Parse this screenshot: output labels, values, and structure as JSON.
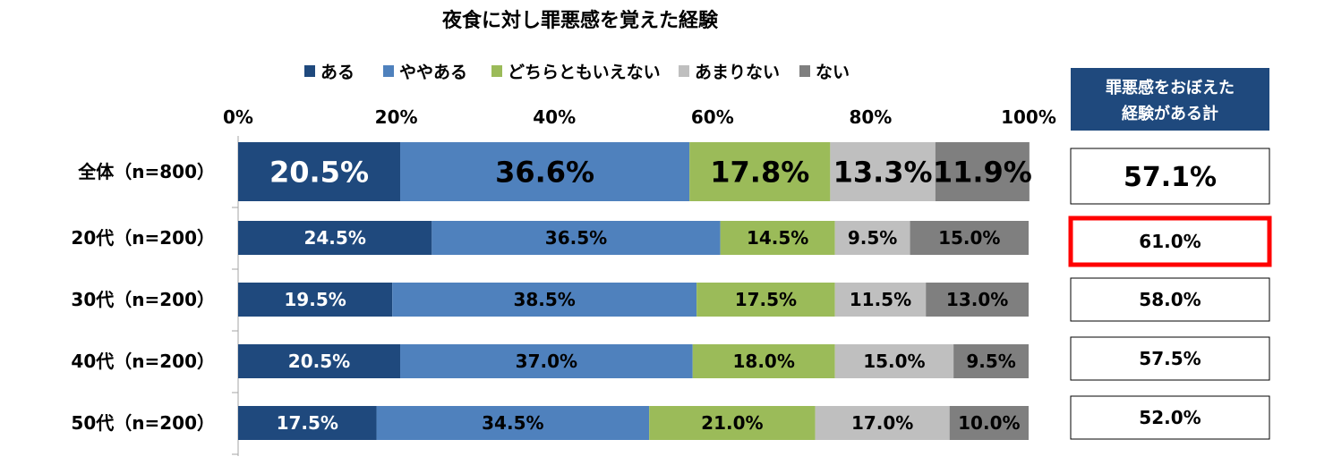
{
  "chart_data": {
    "type": "bar",
    "orientation": "horizontal",
    "stacked": "percent",
    "title": "夜食に対し罪悪感を覚えた経験",
    "categories": [
      "全体（n=800）",
      "20代（n=200）",
      "30代（n=200）",
      "40代（n=200）",
      "50代（n=200）"
    ],
    "x_ticks": [
      "0%",
      "20%",
      "40%",
      "60%",
      "80%",
      "100%"
    ],
    "xlim": [
      0,
      100
    ],
    "legend_position": "top",
    "series": [
      {
        "name": "ある",
        "color": "#1f497d",
        "values": [
          20.5,
          24.5,
          19.5,
          20.5,
          17.5
        ],
        "labels": [
          "20.5%",
          "24.5%",
          "19.5%",
          "20.5%",
          "17.5%"
        ],
        "label_color": "#ffffff"
      },
      {
        "name": "ややある",
        "color": "#4f81bd",
        "values": [
          36.6,
          36.5,
          38.5,
          37.0,
          34.5
        ],
        "labels": [
          "36.6%",
          "36.5%",
          "38.5%",
          "37.0%",
          "34.5%"
        ],
        "label_color": "#000000"
      },
      {
        "name": "どちらともいえない",
        "color": "#9bbb59",
        "values": [
          17.8,
          14.5,
          17.5,
          18.0,
          21.0
        ],
        "labels": [
          "17.8%",
          "14.5%",
          "17.5%",
          "18.0%",
          "21.0%"
        ],
        "label_color": "#000000"
      },
      {
        "name": "あまりない",
        "color": "#bfbfbf",
        "values": [
          13.3,
          9.5,
          11.5,
          15.0,
          17.0
        ],
        "labels": [
          "13.3%",
          "9.5%",
          "11.5%",
          "15.0%",
          "17.0%"
        ],
        "label_color": "#000000"
      },
      {
        "name": "ない",
        "color": "#7f7f7f",
        "values": [
          11.9,
          15.0,
          13.0,
          9.5,
          10.0
        ],
        "labels": [
          "11.9%",
          "15.0%",
          "13.0%",
          "9.5%",
          "10.0%"
        ],
        "label_color": "#000000"
      }
    ],
    "summary": {
      "header_line1": "罪悪感をおぼえた",
      "header_line2": "経験がある計",
      "header_color": "#1f497d",
      "values": [
        "57.1%",
        "61.0%",
        "58.0%",
        "57.5%",
        "52.0%"
      ],
      "highlighted_index": 1,
      "highlight_color": "#ff0000"
    }
  }
}
